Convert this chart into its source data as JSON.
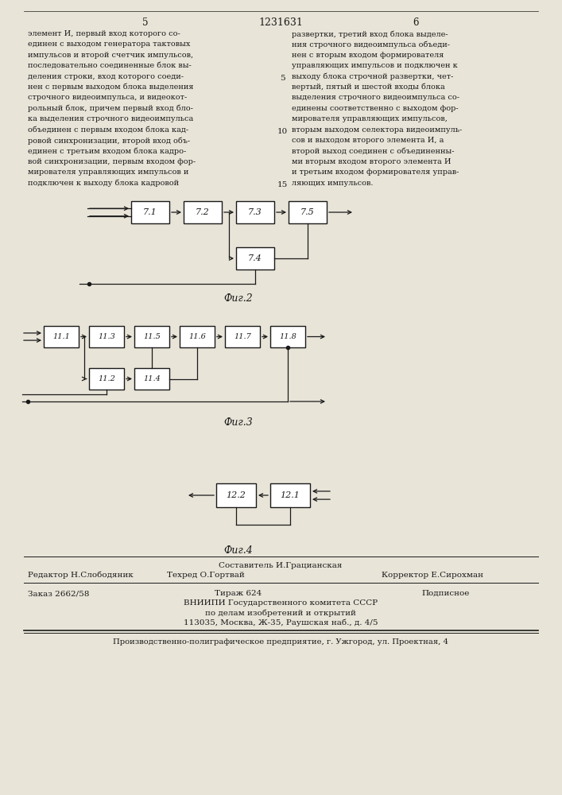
{
  "title": "1231631",
  "page_left": "5",
  "page_right": "6",
  "background_color": "#e8e4d8",
  "text_color": "#1a1a1a",
  "fig2_label": "Фиг.2",
  "fig3_label": "Фиг.3",
  "fig4_label": "Фиг.4",
  "left_column_text": [
    "элемент И, первый вход которого со-",
    "единен с выходом генератора тактовых",
    "импульсов и второй счетчик импульсов,",
    "последовательно соединенные блок вы-",
    "деления строки, вход которого соеди-",
    "нен с первым выходом блока выделения",
    "строчного видеоимпульса, и видеокот-",
    "рольный блок, причем первый вход бло-",
    "ка выделения строчного видеоимпульса",
    "объединен с первым входом блока кад-",
    "ровой синхронизации, второй вход объ-",
    "единен с третьим входом блока кадро-",
    "вой синхронизации, первым входом фор-",
    "мирователя управляющих импульсов и",
    "подключен к выходу блока кадровой"
  ],
  "right_column_text": [
    "развертки, третий вход блока выделе-",
    "ния строчного видеоимпульса объеди-",
    "нен с вторым входом формирователя",
    "управляющих импульсов и подключен к",
    "выходу блока строчной развертки, чет-",
    "вертый, пятый и шестой входы блока",
    "выделения строчного видеоимпульса со-",
    "единены соответственно с выходом фор-",
    "мирователя управляющих импульсов,",
    "вторым выходом селектора видеоимпуль-",
    "сов и выходом второго элемента И, а",
    "второй выход соединен с объединенны-",
    "ми вторым входом второго элемента И",
    "и третьим входом формирователя управ-",
    "ляющих импульсов."
  ],
  "line_numbers": {
    "5": 4,
    "10": 9,
    "15": 14
  },
  "footer_line1": "Составитель И.Грацианская",
  "footer_line2_left": "Редактор Н.Слободяник",
  "footer_line2_mid": "Техред О.Гортвай",
  "footer_line2_right": "Корректор Е.Сирохман",
  "footer_line3_left": "Заказ 2662/58",
  "footer_line3_mid": "Тираж 624",
  "footer_line3_right": "Подписное",
  "footer_line4": "ВНИИПИ Государственного комитета СССР",
  "footer_line5": "по делам изобретений и открытий",
  "footer_line6": "113035, Москва, Ж-35, Раушская наб., д. 4/5",
  "footer_line7": "Производственно-полиграфическое предприятие, г. Ужгород, ул. Проектная, 4"
}
